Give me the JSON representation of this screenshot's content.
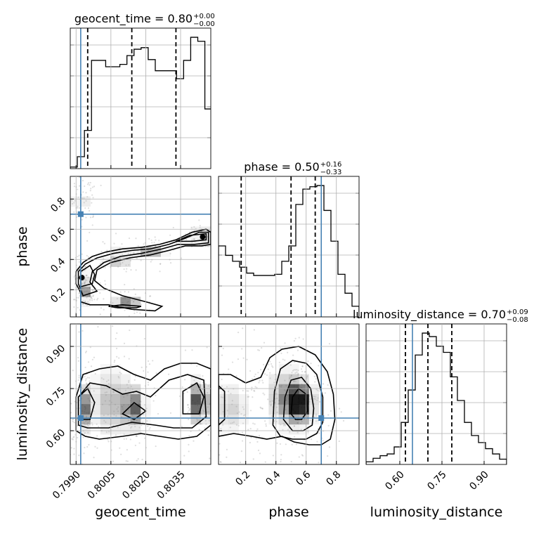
{
  "chart_data": {
    "type": "corner",
    "parameters": [
      {
        "key": "geocent_time",
        "label": "geocent_time",
        "title_main": "geocent_time = 0.80",
        "title_plus": "+0.00",
        "title_minus": "−0.00",
        "range": [
          0.79875,
          0.8048
        ],
        "ticks": [
          0.799,
          0.8005,
          0.802,
          0.8035
        ],
        "tick_labels": [
          "0.7990",
          "0.8005",
          "0.8020",
          "0.8035"
        ],
        "truth": 0.7992,
        "quantiles": [
          0.7995,
          0.8014,
          0.8033
        ],
        "hist_edges_start": 0.79875,
        "hist_bin_width": 0.000305,
        "hist_counts": [
          0.2,
          1.5,
          4.8,
          13.6,
          13.6,
          12.8,
          12.8,
          13.1,
          14.2,
          15.0,
          15.2,
          13.7,
          12.3,
          12.3,
          12.3,
          11.3,
          13.6,
          16.5,
          16.0,
          7.5
        ]
      },
      {
        "key": "phase",
        "label": "phase",
        "title_main": "phase = 0.50",
        "title_plus": "+0.16",
        "title_minus": "−0.33",
        "range": [
          0.02,
          0.95
        ],
        "ticks": [
          0.2,
          0.4,
          0.6,
          0.8
        ],
        "tick_labels": [
          "0.2",
          "0.4",
          "0.6",
          "0.8"
        ],
        "truth": 0.7,
        "quantiles": [
          0.17,
          0.5,
          0.66
        ],
        "hist_edges_start": 0.02,
        "hist_bin_width": 0.0465,
        "hist_counts": [
          6.0,
          5.2,
          4.7,
          4.2,
          3.7,
          3.5,
          3.5,
          3.5,
          3.6,
          4.7,
          6.0,
          9.5,
          10.8,
          11.0,
          11.1,
          9.0,
          6.4,
          3.6,
          2.0,
          0.9
        ]
      },
      {
        "key": "luminosity_distance",
        "label": "luminosity_distance",
        "title_main": "luminosity_distance = 0.70",
        "title_plus": "+0.09",
        "title_minus": "−0.08",
        "range": [
          0.48,
          0.98
        ],
        "ticks": [
          0.6,
          0.75,
          0.9
        ],
        "tick_labels": [
          "0.60",
          "0.75",
          "0.90"
        ],
        "truth": 0.645,
        "quantiles": [
          0.62,
          0.7,
          0.785
        ],
        "hist_edges_start": 0.48,
        "hist_bin_width": 0.025,
        "hist_counts": [
          0.3,
          0.7,
          1.0,
          1.2,
          2.0,
          4.8,
          8.5,
          12.5,
          15.0,
          14.6,
          13.5,
          12.8,
          10.0,
          7.3,
          4.8,
          3.3,
          2.5,
          1.8,
          1.2,
          0.6
        ]
      }
    ],
    "pairs": [
      {
        "x": "geocent_time",
        "y": "phase",
        "truth": [
          0.7992,
          0.7
        ],
        "mode_points": [
          [
            0.79925,
            0.28
          ],
          [
            0.80445,
            0.55
          ]
        ],
        "contour_levels": [
          [
            [
              0.7992,
              0.12
            ],
            [
              0.7992,
              0.18
            ],
            [
              0.799,
              0.24
            ],
            [
              0.799,
              0.32
            ],
            [
              0.7993,
              0.38
            ],
            [
              0.7997,
              0.42
            ],
            [
              0.8003,
              0.45
            ],
            [
              0.801,
              0.47
            ],
            [
              0.8018,
              0.48
            ],
            [
              0.8026,
              0.5
            ],
            [
              0.8033,
              0.53
            ],
            [
              0.804,
              0.58
            ],
            [
              0.8046,
              0.6
            ],
            [
              0.8048,
              0.58
            ],
            [
              0.8048,
              0.5
            ],
            [
              0.8044,
              0.49
            ],
            [
              0.8037,
              0.49
            ],
            [
              0.803,
              0.46
            ],
            [
              0.8022,
              0.43
            ],
            [
              0.8013,
              0.41
            ],
            [
              0.8005,
              0.38
            ],
            [
              0.7999,
              0.33
            ],
            [
              0.7998,
              0.26
            ],
            [
              0.8002,
              0.21
            ],
            [
              0.801,
              0.16
            ],
            [
              0.802,
              0.12
            ],
            [
              0.8027,
              0.09
            ],
            [
              0.8024,
              0.06
            ],
            [
              0.8014,
              0.07
            ],
            [
              0.8004,
              0.1
            ],
            [
              0.7996,
              0.1
            ]
          ],
          [
            [
              0.7993,
              0.16
            ],
            [
              0.7991,
              0.24
            ],
            [
              0.7991,
              0.32
            ],
            [
              0.7994,
              0.37
            ],
            [
              0.7999,
              0.41
            ],
            [
              0.8006,
              0.44
            ],
            [
              0.8014,
              0.46
            ],
            [
              0.8022,
              0.47
            ],
            [
              0.803,
              0.5
            ],
            [
              0.8037,
              0.54
            ],
            [
              0.8043,
              0.58
            ],
            [
              0.8047,
              0.58
            ],
            [
              0.8047,
              0.51
            ],
            [
              0.8041,
              0.5
            ],
            [
              0.8034,
              0.5
            ],
            [
              0.8027,
              0.47
            ],
            [
              0.8018,
              0.44
            ],
            [
              0.8009,
              0.42
            ],
            [
              0.8002,
              0.38
            ],
            [
              0.7997,
              0.32
            ],
            [
              0.7996,
              0.25
            ],
            [
              0.7999,
              0.19
            ]
          ],
          [
            [
              0.7992,
              0.22
            ],
            [
              0.7992,
              0.32
            ],
            [
              0.7996,
              0.36
            ],
            [
              0.7998,
              0.3
            ],
            [
              0.7997,
              0.24
            ]
          ],
          [
            [
              0.8033,
              0.52
            ],
            [
              0.8039,
              0.56
            ],
            [
              0.8046,
              0.57
            ],
            [
              0.8046,
              0.53
            ],
            [
              0.804,
              0.52
            ]
          ],
          [
            [
              0.8004,
              0.09
            ],
            [
              0.801,
              0.1
            ],
            [
              0.8018,
              0.09
            ],
            [
              0.8016,
              0.08
            ],
            [
              0.8008,
              0.08
            ]
          ]
        ]
      },
      {
        "x": "geocent_time",
        "y": "luminosity_distance",
        "truth": [
          0.7992,
          0.645
        ],
        "contour_levels": [
          [
            [
              0.799,
              0.6
            ],
            [
              0.799,
              0.72
            ],
            [
              0.7993,
              0.8
            ],
            [
              0.8,
              0.82
            ],
            [
              0.8008,
              0.83
            ],
            [
              0.8015,
              0.8
            ],
            [
              0.8022,
              0.78
            ],
            [
              0.8028,
              0.82
            ],
            [
              0.8035,
              0.84
            ],
            [
              0.8042,
              0.84
            ],
            [
              0.8048,
              0.82
            ],
            [
              0.8048,
              0.62
            ],
            [
              0.8042,
              0.58
            ],
            [
              0.8034,
              0.57
            ],
            [
              0.8026,
              0.58
            ],
            [
              0.8018,
              0.59
            ],
            [
              0.801,
              0.58
            ],
            [
              0.8,
              0.57
            ],
            [
              0.7994,
              0.58
            ]
          ],
          [
            [
              0.7991,
              0.62
            ],
            [
              0.7991,
              0.72
            ],
            [
              0.7996,
              0.77
            ],
            [
              0.8003,
              0.76
            ],
            [
              0.801,
              0.73
            ],
            [
              0.8016,
              0.74
            ],
            [
              0.8022,
              0.72
            ],
            [
              0.803,
              0.78
            ],
            [
              0.8038,
              0.8
            ],
            [
              0.8045,
              0.78
            ],
            [
              0.8046,
              0.65
            ],
            [
              0.804,
              0.61
            ],
            [
              0.8032,
              0.61
            ],
            [
              0.8024,
              0.62
            ],
            [
              0.8014,
              0.63
            ],
            [
              0.8004,
              0.61
            ],
            [
              0.7995,
              0.61
            ]
          ],
          [
            [
              0.7991,
              0.64
            ],
            [
              0.7991,
              0.72
            ],
            [
              0.7995,
              0.75
            ],
            [
              0.7998,
              0.7
            ],
            [
              0.7996,
              0.64
            ]
          ],
          [
            [
              0.8036,
              0.66
            ],
            [
              0.8036,
              0.74
            ],
            [
              0.8042,
              0.77
            ],
            [
              0.8045,
              0.72
            ],
            [
              0.8043,
              0.66
            ]
          ],
          [
            [
              0.801,
              0.66
            ],
            [
              0.8015,
              0.7
            ],
            [
              0.802,
              0.67
            ],
            [
              0.8015,
              0.64
            ]
          ]
        ]
      },
      {
        "x": "phase",
        "y": "luminosity_distance",
        "truth": [
          0.7,
          0.645
        ],
        "contour_levels": [
          [
            [
              0.02,
              0.58
            ],
            [
              0.02,
              0.8
            ],
            [
              0.1,
              0.8
            ],
            [
              0.2,
              0.77
            ],
            [
              0.3,
              0.79
            ],
            [
              0.36,
              0.86
            ],
            [
              0.44,
              0.89
            ],
            [
              0.55,
              0.9
            ],
            [
              0.66,
              0.87
            ],
            [
              0.74,
              0.81
            ],
            [
              0.78,
              0.73
            ],
            [
              0.79,
              0.64
            ],
            [
              0.76,
              0.57
            ],
            [
              0.7,
              0.55
            ],
            [
              0.62,
              0.55
            ],
            [
              0.52,
              0.56
            ],
            [
              0.44,
              0.58
            ],
            [
              0.34,
              0.57
            ],
            [
              0.24,
              0.58
            ],
            [
              0.12,
              0.59
            ]
          ],
          [
            [
              0.38,
              0.62
            ],
            [
              0.39,
              0.74
            ],
            [
              0.43,
              0.82
            ],
            [
              0.51,
              0.85
            ],
            [
              0.6,
              0.84
            ],
            [
              0.67,
              0.8
            ],
            [
              0.71,
              0.72
            ],
            [
              0.71,
              0.63
            ],
            [
              0.67,
              0.59
            ],
            [
              0.6,
              0.57
            ],
            [
              0.51,
              0.57
            ],
            [
              0.43,
              0.58
            ]
          ],
          [
            [
              0.45,
              0.64
            ],
            [
              0.46,
              0.72
            ],
            [
              0.5,
              0.78
            ],
            [
              0.57,
              0.79
            ],
            [
              0.63,
              0.75
            ],
            [
              0.65,
              0.68
            ],
            [
              0.64,
              0.62
            ],
            [
              0.58,
              0.6
            ],
            [
              0.51,
              0.6
            ]
          ],
          [
            [
              0.5,
              0.66
            ],
            [
              0.51,
              0.72
            ],
            [
              0.55,
              0.75
            ],
            [
              0.6,
              0.73
            ],
            [
              0.61,
              0.67
            ],
            [
              0.57,
              0.64
            ],
            [
              0.53,
              0.64
            ]
          ],
          [
            [
              0.02,
              0.62
            ],
            [
              0.02,
              0.76
            ],
            [
              0.06,
              0.74
            ],
            [
              0.06,
              0.64
            ]
          ]
        ]
      }
    ],
    "density_blobs": [
      {
        "pair": 0,
        "x": 0.7992,
        "y": 0.28,
        "sx": 0.00012,
        "sy": 0.04,
        "w": 1.0
      },
      {
        "pair": 0,
        "x": 0.7994,
        "y": 0.18,
        "sx": 0.00015,
        "sy": 0.04,
        "w": 0.6
      },
      {
        "pair": 0,
        "x": 0.8012,
        "y": 0.11,
        "sx": 0.0004,
        "sy": 0.025,
        "w": 0.7
      },
      {
        "pair": 0,
        "x": 0.8008,
        "y": 0.41,
        "sx": 0.0004,
        "sy": 0.03,
        "w": 0.6
      },
      {
        "pair": 0,
        "x": 0.8022,
        "y": 0.46,
        "sx": 0.0004,
        "sy": 0.03,
        "w": 0.6
      },
      {
        "pair": 0,
        "x": 0.8044,
        "y": 0.55,
        "sx": 0.0002,
        "sy": 0.025,
        "w": 1.0
      },
      {
        "pair": 0,
        "x": 0.7992,
        "y": 0.8,
        "sx": 0.0002,
        "sy": 0.05,
        "w": 0.4
      },
      {
        "pair": 1,
        "x": 0.7993,
        "y": 0.68,
        "sx": 0.00015,
        "sy": 0.05,
        "w": 0.8
      },
      {
        "pair": 1,
        "x": 0.8015,
        "y": 0.68,
        "sx": 0.0003,
        "sy": 0.05,
        "w": 0.7
      },
      {
        "pair": 1,
        "x": 0.8043,
        "y": 0.7,
        "sx": 0.00025,
        "sy": 0.05,
        "w": 1.0
      },
      {
        "pair": 1,
        "x": 0.8005,
        "y": 0.7,
        "sx": 0.0006,
        "sy": 0.08,
        "w": 0.5
      },
      {
        "pair": 2,
        "x": 0.56,
        "y": 0.7,
        "sx": 0.06,
        "sy": 0.05,
        "w": 1.0
      },
      {
        "pair": 2,
        "x": 0.45,
        "y": 0.72,
        "sx": 0.08,
        "sy": 0.07,
        "w": 0.5
      },
      {
        "pair": 2,
        "x": 0.1,
        "y": 0.68,
        "sx": 0.08,
        "sy": 0.06,
        "w": 0.4
      }
    ]
  }
}
